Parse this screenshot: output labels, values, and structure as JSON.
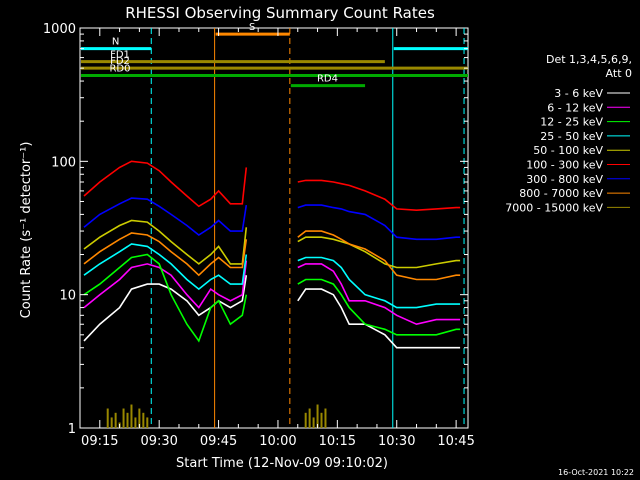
{
  "chart_data": {
    "type": "line",
    "title": "RHESSI Observing Summary Count Rates",
    "xlabel": "Start Time (12-Nov-09 09:10:02)",
    "ylabel": "Count Rate (s⁻¹ detector⁻¹)",
    "y_scale": "log",
    "ylim": [
      1,
      1000
    ],
    "xlim": [
      "09:10",
      "10:48"
    ],
    "x_ticks": [
      "09:15",
      "09:30",
      "09:45",
      "10:00",
      "10:15",
      "10:30",
      "10:45"
    ],
    "y_tick_labels": [
      {
        "value": 1,
        "label": "1"
      },
      {
        "value": 10,
        "label": "10"
      },
      {
        "value": 100,
        "label": "100"
      },
      {
        "value": 1000,
        "label": "1000"
      }
    ],
    "footer_date": "16-Oct-2021 10:22",
    "legend": {
      "placement": "right",
      "header": [
        "Det 1,3,4,5,6,9,",
        "Att 0"
      ]
    },
    "series": [
      {
        "name": "3 - 6 keV",
        "color": "#ffffff",
        "x": [
          "09:11",
          "09:15",
          "09:20",
          "09:23",
          "09:27",
          "09:30",
          "09:33",
          "09:37",
          "09:40",
          "09:43",
          "09:45",
          "09:48",
          "09:51",
          "09:52",
          "10:05",
          "10:07",
          "10:11",
          "10:14",
          "10:16",
          "10:18",
          "10:22",
          "10:27",
          "10:30",
          "10:35",
          "10:40",
          "10:45",
          "10:46"
        ],
        "y": [
          4.5,
          6,
          8,
          11,
          12,
          12,
          11,
          9,
          7,
          8,
          9,
          8,
          9,
          14,
          9,
          11,
          11,
          10,
          8,
          6,
          6,
          5,
          4,
          4,
          4,
          4,
          4
        ]
      },
      {
        "name": "6 - 12 keV",
        "color": "#ff00ff",
        "x": [
          "09:11",
          "09:15",
          "09:20",
          "09:23",
          "09:27",
          "09:30",
          "09:33",
          "09:37",
          "09:40",
          "09:43",
          "09:45",
          "09:48",
          "09:51",
          "09:52",
          "10:05",
          "10:07",
          "10:11",
          "10:14",
          "10:16",
          "10:18",
          "10:22",
          "10:27",
          "10:30",
          "10:35",
          "10:40",
          "10:45",
          "10:46"
        ],
        "y": [
          8,
          10,
          13,
          16,
          17,
          16,
          14,
          10,
          8,
          11,
          10,
          9,
          10,
          18,
          16,
          17,
          17,
          15,
          12,
          9,
          9,
          8,
          7,
          6,
          6.5,
          6.5,
          6.5
        ]
      },
      {
        "name": "12 - 25 keV",
        "color": "#00ff00",
        "x": [
          "09:11",
          "09:15",
          "09:20",
          "09:23",
          "09:27",
          "09:30",
          "09:33",
          "09:37",
          "09:40",
          "09:43",
          "09:45",
          "09:48",
          "09:51",
          "09:52",
          "10:05",
          "10:07",
          "10:11",
          "10:14",
          "10:16",
          "10:18",
          "10:22",
          "10:27",
          "10:30",
          "10:35",
          "10:40",
          "10:45",
          "10:46"
        ],
        "y": [
          10,
          12,
          16,
          19,
          20,
          17,
          10,
          6,
          4.5,
          8,
          9,
          6,
          7,
          10,
          12,
          13,
          13,
          12,
          10,
          8,
          6,
          5.5,
          5,
          5,
          5,
          5.5,
          5.5
        ]
      },
      {
        "name": "25 - 50 keV",
        "color": "#00ffff",
        "x": [
          "09:11",
          "09:15",
          "09:20",
          "09:23",
          "09:27",
          "09:30",
          "09:33",
          "09:37",
          "09:40",
          "09:43",
          "09:45",
          "09:48",
          "09:51",
          "09:52",
          "10:05",
          "10:07",
          "10:11",
          "10:14",
          "10:16",
          "10:18",
          "10:22",
          "10:27",
          "10:30",
          "10:35",
          "10:40",
          "10:45",
          "10:46"
        ],
        "y": [
          14,
          17,
          21,
          24,
          23,
          20,
          17,
          13,
          11,
          13,
          14,
          12,
          12,
          20,
          18,
          19,
          19,
          18,
          16,
          13,
          10,
          9,
          8,
          8,
          8.5,
          8.5,
          8.5
        ]
      },
      {
        "name": "50 - 100 keV",
        "color": "#cccc00",
        "x": [
          "09:11",
          "09:15",
          "09:20",
          "09:23",
          "09:27",
          "09:30",
          "09:33",
          "09:37",
          "09:40",
          "09:43",
          "09:45",
          "09:48",
          "09:51",
          "09:52",
          "10:05",
          "10:07",
          "10:11",
          "10:14",
          "10:16",
          "10:18",
          "10:22",
          "10:27",
          "10:30",
          "10:35",
          "10:40",
          "10:45",
          "10:46"
        ],
        "y": [
          22,
          27,
          33,
          36,
          35,
          30,
          25,
          20,
          17,
          20,
          23,
          17,
          17,
          32,
          25,
          27,
          27,
          26,
          25,
          24,
          21,
          17,
          16,
          16,
          17,
          18,
          18
        ]
      },
      {
        "name": "100 - 300 keV",
        "color": "#ff0000",
        "x": [
          "09:11",
          "09:15",
          "09:20",
          "09:23",
          "09:27",
          "09:30",
          "09:33",
          "09:37",
          "09:40",
          "09:43",
          "09:45",
          "09:48",
          "09:51",
          "09:52",
          "10:05",
          "10:07",
          "10:11",
          "10:14",
          "10:16",
          "10:18",
          "10:22",
          "10:27",
          "10:30",
          "10:35",
          "10:40",
          "10:45",
          "10:46"
        ],
        "y": [
          55,
          70,
          90,
          100,
          97,
          85,
          70,
          55,
          46,
          52,
          60,
          48,
          48,
          90,
          70,
          72,
          72,
          70,
          68,
          66,
          60,
          52,
          44,
          43,
          44,
          45,
          45
        ]
      },
      {
        "name": "300 - 800 keV",
        "color": "#0000ff",
        "x": [
          "09:11",
          "09:15",
          "09:20",
          "09:23",
          "09:27",
          "09:30",
          "09:33",
          "09:37",
          "09:40",
          "09:43",
          "09:45",
          "09:48",
          "09:51",
          "09:52",
          "10:05",
          "10:07",
          "10:11",
          "10:14",
          "10:16",
          "10:18",
          "10:22",
          "10:27",
          "10:30",
          "10:35",
          "10:40",
          "10:45",
          "10:46"
        ],
        "y": [
          32,
          40,
          48,
          53,
          52,
          46,
          40,
          33,
          28,
          32,
          36,
          30,
          30,
          47,
          45,
          47,
          47,
          45,
          44,
          42,
          40,
          33,
          27,
          26,
          26,
          27,
          27
        ]
      },
      {
        "name": "800 - 7000 keV",
        "color": "#ff8800",
        "x": [
          "09:11",
          "09:15",
          "09:20",
          "09:23",
          "09:27",
          "09:30",
          "09:33",
          "09:37",
          "09:40",
          "09:43",
          "09:45",
          "09:48",
          "09:51",
          "09:52",
          "10:05",
          "10:07",
          "10:11",
          "10:14",
          "10:16",
          "10:18",
          "10:22",
          "10:27",
          "10:30",
          "10:35",
          "10:40",
          "10:45",
          "10:46"
        ],
        "y": [
          17,
          21,
          26,
          29,
          28,
          25,
          21,
          17,
          14,
          17,
          19,
          16,
          16,
          26,
          27,
          30,
          30,
          28,
          26,
          24,
          22,
          18,
          14,
          13,
          13,
          14,
          14
        ]
      },
      {
        "name": "7000 - 15000 keV",
        "color": "#998800",
        "x": [
          "09:17",
          "09:18",
          "09:19",
          "09:20",
          "09:21",
          "09:22",
          "09:23",
          "09:24",
          "09:25",
          "09:26",
          "09:27",
          "10:07",
          "10:08",
          "10:09",
          "10:10",
          "10:11",
          "10:12"
        ],
        "y": [
          1.4,
          1.2,
          1.3,
          1.1,
          1.4,
          1.3,
          1.5,
          1.2,
          1.4,
          1.3,
          1.2,
          1.3,
          1.4,
          1.2,
          1.5,
          1.3,
          1.4
        ]
      }
    ],
    "status_bars": [
      {
        "label": "N",
        "color": "#00ffff",
        "y": 700,
        "segments": [
          [
            "09:10",
            "09:28"
          ],
          [
            "10:29",
            "10:48"
          ]
        ]
      },
      {
        "label": "FD1",
        "color": "#998800",
        "y": 560,
        "segments": [
          [
            "09:10",
            "10:27"
          ]
        ]
      },
      {
        "label": "FD2",
        "color": "#998800",
        "y": 500,
        "segments": [
          [
            "09:10",
            "10:48"
          ]
        ]
      },
      {
        "label": "S",
        "color": "#ff8800",
        "y": 900,
        "segments": [
          [
            "09:44",
            "10:03"
          ]
        ]
      },
      {
        "label": "RD0",
        "color": "#00aa00",
        "y": 440,
        "segments": [
          [
            "09:10",
            "10:48"
          ]
        ]
      },
      {
        "label": "RD4",
        "color": "#00aa00",
        "y": 370,
        "segments": [
          [
            "10:03",
            "10:22"
          ]
        ]
      }
    ],
    "vertical_markers": [
      {
        "x": "09:28",
        "color": "#00ffff",
        "style": "dashed"
      },
      {
        "x": "10:29",
        "color": "#00ffff",
        "style": "solid"
      },
      {
        "x": "10:47",
        "color": "#00ffff",
        "style": "dashed"
      },
      {
        "x": "09:44",
        "color": "#ff8800",
        "style": "solid"
      },
      {
        "x": "10:03",
        "color": "#ff8800",
        "style": "dashed"
      }
    ]
  }
}
